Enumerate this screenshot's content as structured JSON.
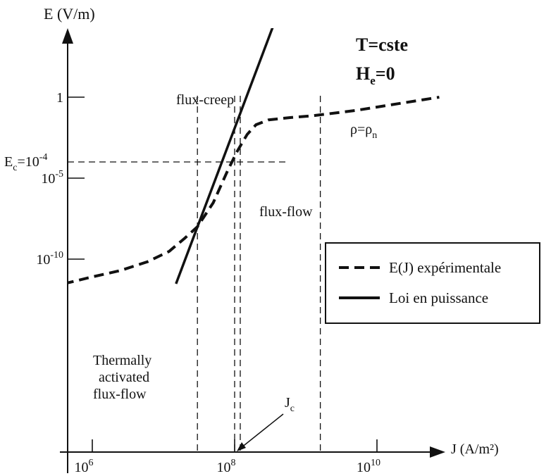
{
  "chart_data": {
    "type": "line",
    "title": "",
    "xlabel": "J (A/m²)",
    "ylabel": "E (V/m)",
    "x_scale": "log",
    "y_scale": "log",
    "x_ticks": [
      {
        "base": "10",
        "exp": "6",
        "value": 1000000
      },
      {
        "base": "10",
        "exp": "8",
        "value": 100000000
      },
      {
        "base": "10",
        "exp": "10",
        "value": 10000000000
      }
    ],
    "y_ticks": [
      {
        "base": "1",
        "exp": "",
        "value": 1
      },
      {
        "base": "10",
        "exp": "-5",
        "value": 1e-05
      },
      {
        "base": "10",
        "exp": "-10",
        "value": 1e-10
      }
    ],
    "conditions": {
      "line1": {
        "main": "T=cste"
      },
      "line2": {
        "main": "H",
        "sub": "e",
        "rest": "=0"
      }
    },
    "ec_label": {
      "pre": "E",
      "sub": "c",
      "mid": "=10",
      "sup": "-4",
      "value": 0.0001
    },
    "jc_label": {
      "main": "J",
      "sub": "c",
      "value": 100000000
    },
    "region_labels": {
      "flux_creep": "flux-creep",
      "flux_flow": "flux-flow",
      "thermal": [
        "Thermally",
        "activated",
        "flux-flow"
      ],
      "rho": {
        "p1": "ρ=ρ",
        "sub": "n"
      }
    },
    "series": [
      {
        "name": "E(J) expérimentale",
        "style": "dashed",
        "points": [
          {
            "x": 400000,
            "y": 3e-12
          },
          {
            "x": 1000000,
            "y": 8e-12
          },
          {
            "x": 2500000,
            "y": 2e-11
          },
          {
            "x": 6000000,
            "y": 7e-11
          },
          {
            "x": 12000000,
            "y": 3e-10
          },
          {
            "x": 20000000,
            "y": 2e-09
          },
          {
            "x": 30000000,
            "y": 1e-08
          },
          {
            "x": 50000000,
            "y": 3e-07
          },
          {
            "x": 80000000,
            "y": 3e-05
          },
          {
            "x": 110000000,
            "y": 0.0005
          },
          {
            "x": 150000000,
            "y": 0.005
          },
          {
            "x": 200000000,
            "y": 0.02
          },
          {
            "x": 300000000,
            "y": 0.04
          },
          {
            "x": 600000000,
            "y": 0.055
          },
          {
            "x": 1200000000,
            "y": 0.07
          },
          {
            "x": 5000000000,
            "y": 0.15
          },
          {
            "x": 20000000000,
            "y": 0.4
          },
          {
            "x": 75000000000,
            "y": 1
          }
        ]
      },
      {
        "name": "Loi en puissance",
        "style": "solid",
        "points": [
          {
            "x": 15000000,
            "y": 3e-12
          },
          {
            "x": 450000000,
            "y": 500000
          }
        ]
      }
    ],
    "vertical_markers": [
      30000000,
      100000000,
      120000000,
      1600000000
    ],
    "grid": false,
    "legend_position": "right"
  }
}
